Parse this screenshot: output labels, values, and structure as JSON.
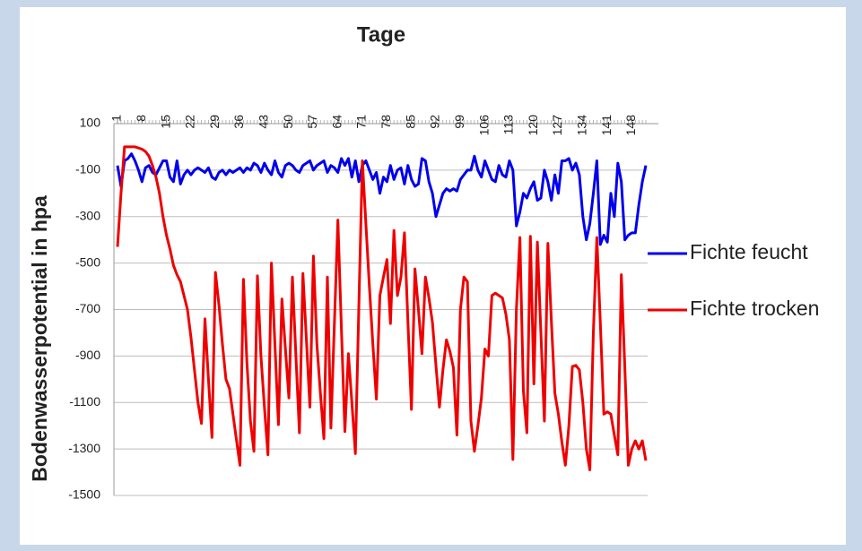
{
  "chart_data": {
    "type": "line",
    "title": "Tage",
    "y_label": "Bodenwasserpotential in hpa",
    "x": [
      1,
      2,
      3,
      4,
      5,
      6,
      7,
      8,
      9,
      10,
      11,
      12,
      13,
      14,
      15,
      16,
      17,
      18,
      19,
      20,
      21,
      22,
      23,
      24,
      25,
      26,
      27,
      28,
      29,
      30,
      31,
      32,
      33,
      34,
      35,
      36,
      37,
      38,
      39,
      40,
      41,
      42,
      43,
      44,
      45,
      46,
      47,
      48,
      49,
      50,
      51,
      52,
      53,
      54,
      55,
      56,
      57,
      58,
      59,
      60,
      61,
      62,
      63,
      64,
      65,
      66,
      67,
      68,
      69,
      70,
      71,
      72,
      73,
      74,
      75,
      76,
      77,
      78,
      79,
      80,
      81,
      82,
      83,
      84,
      85,
      86,
      87,
      88,
      89,
      90,
      91,
      92,
      93,
      94,
      95,
      96,
      97,
      98,
      99,
      100,
      101,
      102,
      103,
      104,
      105,
      106,
      107,
      108,
      109,
      110,
      111,
      112,
      113,
      114,
      115,
      116,
      117,
      118,
      119,
      120,
      121,
      122,
      123,
      124,
      125,
      126,
      127,
      128,
      129,
      130,
      131,
      132,
      133,
      134,
      135,
      136,
      137,
      138,
      139,
      140,
      141,
      142,
      143,
      144,
      145,
      146,
      147,
      148,
      149,
      150,
      151,
      152
    ],
    "xlim": [
      1,
      152
    ],
    "xticks": [
      1,
      8,
      15,
      22,
      29,
      36,
      43,
      50,
      57,
      64,
      71,
      78,
      85,
      92,
      99,
      106,
      113,
      120,
      127,
      134,
      141,
      148
    ],
    "ylim": [
      -1500,
      100
    ],
    "yticks": [
      100,
      -100,
      -300,
      -500,
      -700,
      -900,
      -1100,
      -1300,
      -1500
    ],
    "grid": true,
    "legend": "right",
    "series": [
      {
        "name": "Fichte feucht",
        "color": "#0000ee",
        "values": [
          -80,
          -170,
          -60,
          -50,
          -30,
          -60,
          -100,
          -150,
          -90,
          -80,
          -110,
          -120,
          -90,
          -60,
          -60,
          -130,
          -150,
          -60,
          -160,
          -120,
          -100,
          -120,
          -100,
          -90,
          -100,
          -110,
          -90,
          -130,
          -140,
          -110,
          -100,
          -120,
          -100,
          -110,
          -100,
          -90,
          -110,
          -90,
          -100,
          -70,
          -80,
          -110,
          -70,
          -100,
          -120,
          -60,
          -110,
          -130,
          -80,
          -70,
          -80,
          -100,
          -110,
          -80,
          -70,
          -60,
          -100,
          -80,
          -70,
          -60,
          -110,
          -80,
          -90,
          -110,
          -50,
          -80,
          -50,
          -130,
          -60,
          -150,
          -80,
          -60,
          -100,
          -140,
          -110,
          -200,
          -130,
          -150,
          -80,
          -140,
          -100,
          -90,
          -160,
          -80,
          -140,
          -170,
          -160,
          -50,
          -60,
          -150,
          -200,
          -300,
          -250,
          -200,
          -180,
          -190,
          -180,
          -190,
          -140,
          -120,
          -100,
          -100,
          -40,
          -100,
          -130,
          -60,
          -100,
          -140,
          -150,
          -80,
          -120,
          -130,
          -60,
          -100,
          -340,
          -280,
          -200,
          -220,
          -180,
          -150,
          -230,
          -220,
          -100,
          -150,
          -230,
          -120,
          -200,
          -60,
          -60,
          -50,
          -100,
          -70,
          -120,
          -300,
          -400,
          -330,
          -200,
          -60,
          -420,
          -380,
          -410,
          -200,
          -300,
          -70,
          -150,
          -400,
          -380,
          -370,
          -370,
          -250,
          -150,
          -80
        ]
      },
      {
        "name": "Fichte trocken",
        "color": "#ee0000",
        "values": [
          -430,
          -200,
          0,
          0,
          0,
          0,
          -5,
          -10,
          -20,
          -40,
          -80,
          -130,
          -200,
          -300,
          -380,
          -440,
          -510,
          -550,
          -580,
          -640,
          -700,
          -820,
          -960,
          -1100,
          -1190,
          -740,
          -1000,
          -1250,
          -540,
          -680,
          -850,
          -1000,
          -1040,
          -1150,
          -1260,
          -1370,
          -570,
          -930,
          -1180,
          -1310,
          -555,
          -900,
          -1120,
          -1325,
          -500,
          -850,
          -1195,
          -655,
          -870,
          -1080,
          -560,
          -900,
          -1230,
          -545,
          -830,
          -1120,
          -470,
          -850,
          -1060,
          -1255,
          -560,
          -1210,
          -760,
          -315,
          -780,
          -1225,
          -890,
          -1100,
          -1320,
          -680,
          -60,
          -330,
          -600,
          -850,
          -1085,
          -640,
          -560,
          -485,
          -760,
          -360,
          -640,
          -560,
          -370,
          -755,
          -1130,
          -525,
          -700,
          -890,
          -560,
          -650,
          -755,
          -940,
          -1120,
          -960,
          -830,
          -880,
          -950,
          -1240,
          -700,
          -560,
          -580,
          -1180,
          -1310,
          -1200,
          -1080,
          -870,
          -900,
          -640,
          -630,
          -640,
          -650,
          -720,
          -830,
          -1345,
          -700,
          -390,
          -1050,
          -1230,
          -385,
          -1020,
          -410,
          -800,
          -1180,
          -415,
          -750,
          -1060,
          -1150,
          -1270,
          -1370,
          -1200,
          -945,
          -940,
          -960,
          -1100,
          -1300,
          -1390,
          -800,
          -390,
          -760,
          -1150,
          -1140,
          -1150,
          -1240,
          -1325,
          -550,
          -950,
          -1370,
          -1300,
          -1265,
          -1300,
          -1265,
          -1350
        ]
      }
    ]
  }
}
